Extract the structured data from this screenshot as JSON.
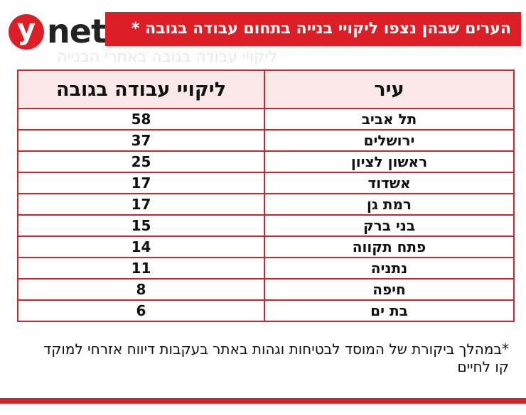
{
  "logo": {
    "y_letter": "y",
    "text": "net"
  },
  "title": "הערים שבהן נצפו ליקויי בנייה בתחום עבודה בגובה *",
  "ghost_text": "ליקויי עבודה בגובה באתרי הבנייה",
  "chart_data": {
    "type": "table",
    "columns": [
      "עיר",
      "ליקויי עבודה בגובה"
    ],
    "rows": [
      {
        "city": "תל אביב",
        "value": 58
      },
      {
        "city": "ירושלים",
        "value": 37
      },
      {
        "city": "ראשון לציון",
        "value": 25
      },
      {
        "city": "אשדוד",
        "value": 17
      },
      {
        "city": "רמת גן",
        "value": 17
      },
      {
        "city": "בני ברק",
        "value": 15
      },
      {
        "city": "פתח תקווה",
        "value": 14
      },
      {
        "city": "נתניה",
        "value": 11
      },
      {
        "city": "חיפה",
        "value": 8
      },
      {
        "city": "בת ים",
        "value": 6
      }
    ]
  },
  "footnote": "*במהלך ביקורת של המוסד לבטיחות וגהות באתר בעקבות דיווח אזרחי למוקד קו לחיים",
  "colors": {
    "accent": "#de1e26",
    "border": "#c9252b",
    "header_bg": "#fbe9e9"
  }
}
